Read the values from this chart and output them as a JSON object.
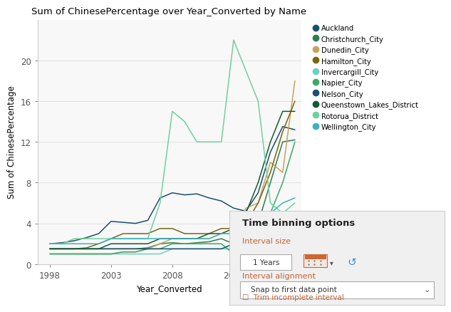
{
  "title": "Sum of ChinesePercentage over Year_Converted by Name",
  "xlabel": "Year_Converted",
  "ylabel": "Sum of ChinesePercentage",
  "xlim": [
    1997,
    2018.5
  ],
  "ylim": [
    0,
    24
  ],
  "yticks": [
    0,
    4,
    8,
    12,
    16,
    20
  ],
  "xticks": [
    1998,
    2003,
    2008,
    2013
  ],
  "bg_color": "#ffffff",
  "plot_bg": "#f8f8f8",
  "series": {
    "Auckland": {
      "color": "#1a4f6e",
      "data": [
        [
          1998,
          2.0
        ],
        [
          1999,
          2.1
        ],
        [
          2000,
          2.3
        ],
        [
          2001,
          2.6
        ],
        [
          2002,
          3.0
        ],
        [
          2003,
          4.2
        ],
        [
          2004,
          4.1
        ],
        [
          2005,
          4.0
        ],
        [
          2006,
          4.3
        ],
        [
          2007,
          6.5
        ],
        [
          2008,
          7.0
        ],
        [
          2009,
          6.8
        ],
        [
          2010,
          6.9
        ],
        [
          2011,
          6.5
        ],
        [
          2012,
          6.2
        ],
        [
          2013,
          5.5
        ],
        [
          2014,
          5.2
        ],
        [
          2015,
          7.0
        ],
        [
          2016,
          11.0
        ],
        [
          2017,
          13.5
        ],
        [
          2018,
          13.2
        ]
      ]
    },
    "Christchurch_City": {
      "color": "#2e7d4f",
      "data": [
        [
          1998,
          1.5
        ],
        [
          1999,
          1.5
        ],
        [
          2000,
          1.5
        ],
        [
          2001,
          1.5
        ],
        [
          2002,
          1.5
        ],
        [
          2003,
          1.5
        ],
        [
          2004,
          1.5
        ],
        [
          2005,
          1.5
        ],
        [
          2006,
          1.6
        ],
        [
          2007,
          2.0
        ],
        [
          2008,
          2.1
        ],
        [
          2009,
          2.0
        ],
        [
          2010,
          2.1
        ],
        [
          2011,
          2.2
        ],
        [
          2012,
          2.5
        ],
        [
          2013,
          2.0
        ],
        [
          2014,
          2.2
        ],
        [
          2015,
          4.0
        ],
        [
          2016,
          8.0
        ],
        [
          2017,
          12.0
        ],
        [
          2018,
          12.2
        ]
      ]
    },
    "Dunedin_City": {
      "color": "#c8a45a",
      "data": [
        [
          1998,
          1.0
        ],
        [
          1999,
          1.0
        ],
        [
          2000,
          1.0
        ],
        [
          2001,
          1.0
        ],
        [
          2002,
          1.0
        ],
        [
          2003,
          1.0
        ],
        [
          2004,
          1.2
        ],
        [
          2005,
          1.2
        ],
        [
          2006,
          1.5
        ],
        [
          2007,
          2.0
        ],
        [
          2008,
          2.5
        ],
        [
          2009,
          2.5
        ],
        [
          2010,
          2.5
        ],
        [
          2011,
          2.5
        ],
        [
          2012,
          3.0
        ],
        [
          2013,
          3.0
        ],
        [
          2014,
          5.5
        ],
        [
          2015,
          6.0
        ],
        [
          2016,
          10.0
        ],
        [
          2017,
          9.0
        ],
        [
          2018,
          18.0
        ]
      ]
    },
    "Hamilton_City": {
      "color": "#7a6510",
      "data": [
        [
          1998,
          1.5
        ],
        [
          1999,
          1.5
        ],
        [
          2000,
          1.5
        ],
        [
          2001,
          1.6
        ],
        [
          2002,
          2.0
        ],
        [
          2003,
          2.5
        ],
        [
          2004,
          3.0
        ],
        [
          2005,
          3.0
        ],
        [
          2006,
          3.0
        ],
        [
          2007,
          3.5
        ],
        [
          2008,
          3.5
        ],
        [
          2009,
          3.0
        ],
        [
          2010,
          3.0
        ],
        [
          2011,
          3.0
        ],
        [
          2012,
          3.5
        ],
        [
          2013,
          3.5
        ],
        [
          2014,
          4.0
        ],
        [
          2015,
          6.0
        ],
        [
          2016,
          9.0
        ],
        [
          2017,
          13.0
        ],
        [
          2018,
          16.0
        ]
      ]
    },
    "Invercargill_City": {
      "color": "#6ecfc4",
      "data": [
        [
          1998,
          1.0
        ],
        [
          1999,
          1.0
        ],
        [
          2000,
          1.0
        ],
        [
          2001,
          1.0
        ],
        [
          2002,
          1.0
        ],
        [
          2003,
          1.0
        ],
        [
          2004,
          1.0
        ],
        [
          2005,
          1.0
        ],
        [
          2006,
          1.0
        ],
        [
          2007,
          1.0
        ],
        [
          2008,
          1.5
        ],
        [
          2009,
          1.5
        ],
        [
          2010,
          1.5
        ],
        [
          2011,
          1.5
        ],
        [
          2012,
          1.5
        ],
        [
          2013,
          1.5
        ],
        [
          2014,
          1.5
        ],
        [
          2015,
          2.0
        ],
        [
          2016,
          2.5
        ],
        [
          2017,
          3.0
        ],
        [
          2018,
          3.5
        ]
      ]
    },
    "Napier_City": {
      "color": "#3aaa6a",
      "data": [
        [
          1998,
          1.0
        ],
        [
          1999,
          1.0
        ],
        [
          2000,
          1.0
        ],
        [
          2001,
          1.0
        ],
        [
          2002,
          1.0
        ],
        [
          2003,
          1.0
        ],
        [
          2004,
          1.2
        ],
        [
          2005,
          1.2
        ],
        [
          2006,
          1.5
        ],
        [
          2007,
          1.5
        ],
        [
          2008,
          2.0
        ],
        [
          2009,
          2.0
        ],
        [
          2010,
          2.0
        ],
        [
          2011,
          2.0
        ],
        [
          2012,
          2.0
        ],
        [
          2013,
          1.0
        ],
        [
          2014,
          1.0
        ],
        [
          2015,
          3.5
        ],
        [
          2016,
          5.0
        ],
        [
          2017,
          8.0
        ],
        [
          2018,
          12.0
        ]
      ]
    },
    "Nelson_City": {
      "color": "#205070",
      "data": [
        [
          1998,
          1.5
        ],
        [
          1999,
          1.5
        ],
        [
          2000,
          1.5
        ],
        [
          2001,
          1.5
        ],
        [
          2002,
          1.5
        ],
        [
          2003,
          1.5
        ],
        [
          2004,
          1.5
        ],
        [
          2005,
          1.5
        ],
        [
          2006,
          1.5
        ],
        [
          2007,
          1.5
        ],
        [
          2008,
          1.5
        ],
        [
          2009,
          1.5
        ],
        [
          2010,
          1.5
        ],
        [
          2011,
          1.5
        ],
        [
          2012,
          1.5
        ],
        [
          2013,
          2.0
        ],
        [
          2014,
          2.0
        ],
        [
          2015,
          2.5
        ],
        [
          2016,
          2.5
        ],
        [
          2017,
          3.0
        ],
        [
          2018,
          3.5
        ]
      ]
    },
    "Queenstown_Lakes_District": {
      "color": "#145a32",
      "data": [
        [
          1998,
          1.5
        ],
        [
          1999,
          1.5
        ],
        [
          2000,
          1.5
        ],
        [
          2001,
          1.5
        ],
        [
          2002,
          1.5
        ],
        [
          2003,
          2.0
        ],
        [
          2004,
          2.0
        ],
        [
          2005,
          2.0
        ],
        [
          2006,
          2.0
        ],
        [
          2007,
          2.5
        ],
        [
          2008,
          2.5
        ],
        [
          2009,
          2.5
        ],
        [
          2010,
          2.5
        ],
        [
          2011,
          3.0
        ],
        [
          2012,
          3.0
        ],
        [
          2013,
          3.5
        ],
        [
          2014,
          5.0
        ],
        [
          2015,
          8.0
        ],
        [
          2016,
          12.0
        ],
        [
          2017,
          15.0
        ],
        [
          2018,
          15.0
        ]
      ]
    },
    "Rotorua_District": {
      "color": "#70d0a0",
      "data": [
        [
          1998,
          2.0
        ],
        [
          1999,
          2.0
        ],
        [
          2000,
          2.5
        ],
        [
          2001,
          2.5
        ],
        [
          2002,
          2.5
        ],
        [
          2003,
          2.5
        ],
        [
          2004,
          2.5
        ],
        [
          2005,
          2.5
        ],
        [
          2006,
          2.5
        ],
        [
          2007,
          6.0
        ],
        [
          2008,
          15.0
        ],
        [
          2009,
          14.0
        ],
        [
          2010,
          12.0
        ],
        [
          2011,
          12.0
        ],
        [
          2012,
          12.0
        ],
        [
          2013,
          22.0
        ],
        [
          2014,
          19.0
        ],
        [
          2015,
          16.0
        ],
        [
          2016,
          6.0
        ],
        [
          2017,
          5.0
        ],
        [
          2018,
          6.0
        ]
      ]
    },
    "Wellington_City": {
      "color": "#40b0c0",
      "data": [
        [
          1998,
          2.0
        ],
        [
          1999,
          2.0
        ],
        [
          2000,
          2.0
        ],
        [
          2001,
          2.0
        ],
        [
          2002,
          2.0
        ],
        [
          2003,
          2.5
        ],
        [
          2004,
          2.5
        ],
        [
          2005,
          2.5
        ],
        [
          2006,
          2.5
        ],
        [
          2007,
          2.5
        ],
        [
          2008,
          2.5
        ],
        [
          2009,
          2.5
        ],
        [
          2010,
          2.5
        ],
        [
          2011,
          2.5
        ],
        [
          2012,
          3.0
        ],
        [
          2013,
          3.0
        ],
        [
          2014,
          3.5
        ],
        [
          2015,
          4.0
        ],
        [
          2016,
          5.0
        ],
        [
          2017,
          6.0
        ],
        [
          2018,
          6.5
        ]
      ]
    }
  },
  "legend_names": [
    "Auckland",
    "Christchurch_City",
    "Dunedin_City",
    "Hamilton_City",
    "Invercargill_City",
    "Napier_City",
    "Nelson_City",
    "Queenstown_Lakes_District",
    "Rotorua_District",
    "Wellington_City"
  ],
  "panel_bg": "#f0f0f0",
  "panel_border": "#cccccc",
  "panel_title": "Time binning options",
  "panel_label_color": "#c86030",
  "interval_size_text": "1 Years",
  "interval_alignment_label": "Interval alignment",
  "interval_size_label": "Interval size",
  "dropdown_text": "Snap to first data point",
  "checkbox_text": "Trim incomplete interval"
}
